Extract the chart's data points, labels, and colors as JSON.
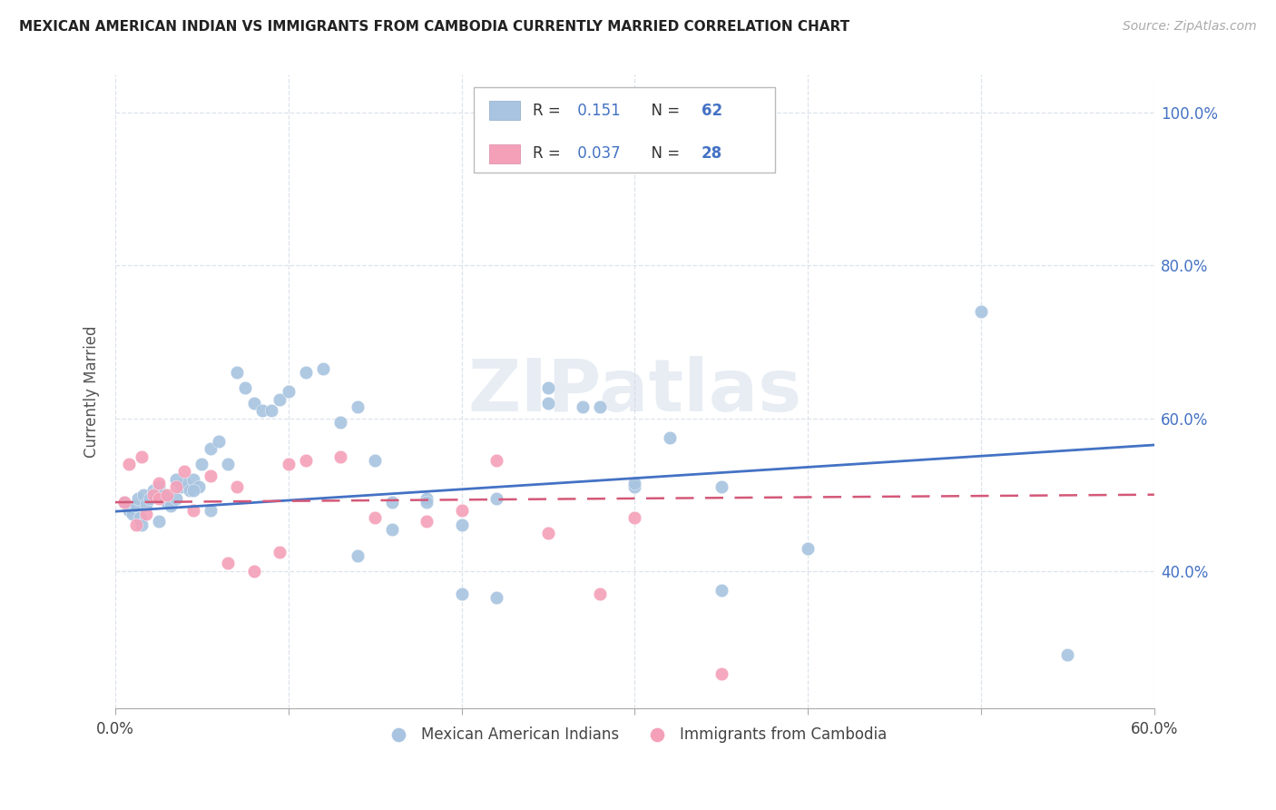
{
  "title": "MEXICAN AMERICAN INDIAN VS IMMIGRANTS FROM CAMBODIA CURRENTLY MARRIED CORRELATION CHART",
  "source": "Source: ZipAtlas.com",
  "ylabel": "Currently Married",
  "xlim": [
    0.0,
    0.6
  ],
  "ylim": [
    0.22,
    1.05
  ],
  "xticks": [
    0.0,
    0.1,
    0.2,
    0.3,
    0.4,
    0.5,
    0.6
  ],
  "xtick_labels": [
    "0.0%",
    "",
    "",
    "",
    "",
    "",
    "60.0%"
  ],
  "yticks": [
    0.4,
    0.6,
    0.8,
    1.0
  ],
  "ytick_labels": [
    "40.0%",
    "60.0%",
    "80.0%",
    "100.0%"
  ],
  "blue_color": "#a8c4e0",
  "pink_color": "#f4a0b8",
  "blue_line_color": "#4472c4",
  "pink_line_color": "#d45878",
  "legend_R1": "0.151",
  "legend_N1": "62",
  "legend_R2": "0.037",
  "legend_N2": "28",
  "watermark": "ZIPatlas",
  "blue_scatter_x": [
    0.005,
    0.008,
    0.01,
    0.012,
    0.013,
    0.014,
    0.016,
    0.018,
    0.02,
    0.022,
    0.025,
    0.028,
    0.03,
    0.032,
    0.035,
    0.038,
    0.04,
    0.043,
    0.045,
    0.048,
    0.05,
    0.055,
    0.06,
    0.065,
    0.07,
    0.075,
    0.08,
    0.085,
    0.09,
    0.095,
    0.1,
    0.11,
    0.12,
    0.13,
    0.14,
    0.15,
    0.16,
    0.18,
    0.2,
    0.22,
    0.14,
    0.16,
    0.18,
    0.2,
    0.22,
    0.25,
    0.28,
    0.3,
    0.32,
    0.35,
    0.25,
    0.27,
    0.3,
    0.35,
    0.4,
    0.5,
    0.55,
    0.015,
    0.025,
    0.035,
    0.045,
    0.055
  ],
  "blue_scatter_y": [
    0.49,
    0.48,
    0.475,
    0.485,
    0.495,
    0.47,
    0.5,
    0.488,
    0.495,
    0.505,
    0.51,
    0.5,
    0.49,
    0.485,
    0.495,
    0.51,
    0.515,
    0.505,
    0.52,
    0.51,
    0.54,
    0.56,
    0.57,
    0.54,
    0.66,
    0.64,
    0.62,
    0.61,
    0.61,
    0.625,
    0.635,
    0.66,
    0.665,
    0.595,
    0.615,
    0.545,
    0.49,
    0.495,
    0.46,
    0.495,
    0.42,
    0.455,
    0.49,
    0.37,
    0.365,
    0.62,
    0.615,
    0.51,
    0.575,
    0.51,
    0.64,
    0.615,
    0.515,
    0.375,
    0.43,
    0.74,
    0.29,
    0.46,
    0.465,
    0.52,
    0.505,
    0.48
  ],
  "pink_scatter_x": [
    0.005,
    0.008,
    0.012,
    0.015,
    0.018,
    0.022,
    0.025,
    0.03,
    0.035,
    0.04,
    0.045,
    0.055,
    0.065,
    0.08,
    0.095,
    0.11,
    0.13,
    0.15,
    0.18,
    0.2,
    0.22,
    0.25,
    0.28,
    0.3,
    0.35,
    0.025,
    0.07,
    0.1
  ],
  "pink_scatter_y": [
    0.49,
    0.54,
    0.46,
    0.55,
    0.475,
    0.5,
    0.495,
    0.5,
    0.51,
    0.53,
    0.48,
    0.525,
    0.41,
    0.4,
    0.425,
    0.545,
    0.55,
    0.47,
    0.465,
    0.48,
    0.545,
    0.45,
    0.37,
    0.47,
    0.265,
    0.515,
    0.51,
    0.54
  ],
  "blue_trend_x": [
    0.0,
    0.6
  ],
  "blue_trend_y": [
    0.478,
    0.565
  ],
  "pink_trend_x": [
    0.0,
    0.6
  ],
  "pink_trend_y": [
    0.49,
    0.5
  ]
}
